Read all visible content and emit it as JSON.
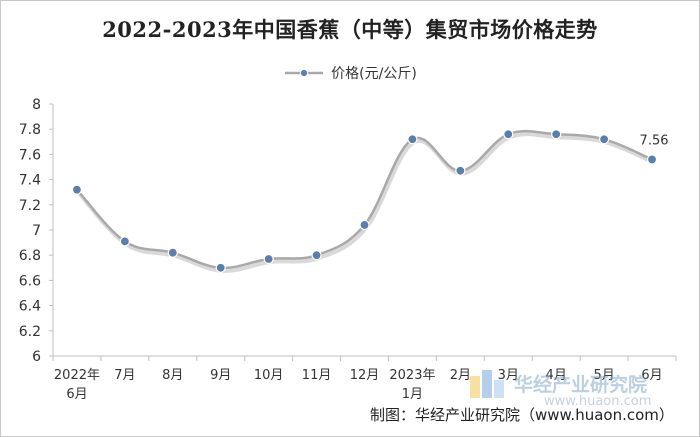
{
  "chart_data": {
    "type": "line",
    "title": "2022-2023年中国香蕉（中等）集贸市场价格走势",
    "categories": [
      "2022年\n6月",
      "7月",
      "8月",
      "9月",
      "10月",
      "11月",
      "12月",
      "2023年\n1月",
      "2月",
      "3月",
      "4月",
      "5月",
      "6月"
    ],
    "series": [
      {
        "name": "价格(元/公斤)",
        "values": [
          7.32,
          6.91,
          6.82,
          6.7,
          6.77,
          6.8,
          7.04,
          7.72,
          7.47,
          7.76,
          7.76,
          7.72,
          7.56
        ],
        "color": "#5b7fad",
        "line_color": "#a9a9a9"
      }
    ],
    "data_labels": [
      {
        "index": 12,
        "text": "7.56"
      }
    ],
    "ylim": [
      6,
      8
    ],
    "yticks": [
      "6",
      "6.2",
      "6.4",
      "6.6",
      "6.8",
      "7",
      "7.2",
      "7.4",
      "7.6",
      "7.8",
      "8"
    ],
    "grid": false,
    "legend_position": "top-center",
    "xlabel": "",
    "ylabel": ""
  },
  "watermark": {
    "cn": "华经产业研究院",
    "url": "www.huaon.com"
  },
  "source_note": "制图：华经产业研究院（www.huaon.com）"
}
